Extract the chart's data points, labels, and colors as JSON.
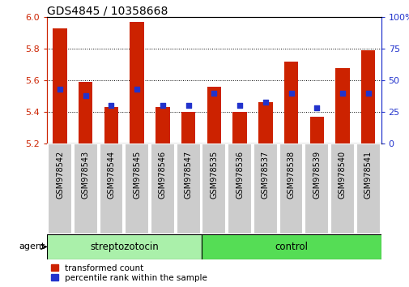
{
  "title": "GDS4845 / 10358668",
  "categories": [
    "GSM978542",
    "GSM978543",
    "GSM978544",
    "GSM978545",
    "GSM978546",
    "GSM978547",
    "GSM978535",
    "GSM978536",
    "GSM978537",
    "GSM978538",
    "GSM978539",
    "GSM978540",
    "GSM978541"
  ],
  "transformed_count": [
    5.93,
    5.59,
    5.43,
    5.97,
    5.43,
    5.4,
    5.56,
    5.4,
    5.46,
    5.72,
    5.37,
    5.68,
    5.79
  ],
  "percentile_rank": [
    43,
    38,
    30,
    43,
    30,
    30,
    40,
    30,
    33,
    40,
    28,
    40,
    40
  ],
  "y_min": 5.2,
  "y_max": 6.0,
  "y_ticks": [
    5.2,
    5.4,
    5.6,
    5.8,
    6.0
  ],
  "right_y_ticks": [
    0,
    25,
    50,
    75,
    100
  ],
  "bar_color": "#cc2200",
  "dot_color": "#2233cc",
  "background_color": "#ffffff",
  "group1_label": "streptozotocin",
  "group2_label": "control",
  "group1_n": 6,
  "group2_n": 7,
  "group1_color": "#aaf0aa",
  "group2_color": "#55dd55",
  "agent_label": "agent",
  "legend_entries": [
    "transformed count",
    "percentile rank within the sample"
  ],
  "tick_color_left": "#cc2200",
  "tick_color_right": "#2233cc",
  "cell_color": "#cccccc",
  "title_fontsize": 10
}
